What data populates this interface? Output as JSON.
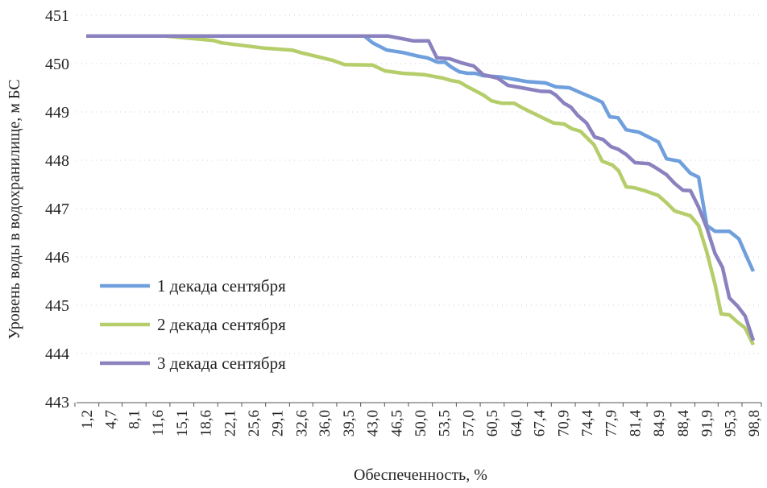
{
  "chart_data": {
    "type": "line",
    "title": "",
    "xlabel": "Обеспеченность, %",
    "ylabel": "Уровень воды в водохранилище, м БС",
    "ylim": [
      443,
      451
    ],
    "xlim": [
      1.2,
      98.8
    ],
    "yticks": [
      "443",
      "444",
      "445",
      "446",
      "447",
      "448",
      "449",
      "450",
      "451"
    ],
    "xticks": [
      "1,2",
      "4,7",
      "8,1",
      "11,6",
      "15,1",
      "18,6",
      "22,1",
      "25,6",
      "29,1",
      "32,6",
      "36,0",
      "39,5",
      "43,0",
      "46,5",
      "50,0",
      "53,5",
      "57,0",
      "60,5",
      "64,0",
      "67,4",
      "70,9",
      "74,4",
      "77,9",
      "81,4",
      "84,9",
      "88,4",
      "91,9",
      "95,3",
      "98,8"
    ],
    "grid": true,
    "legend_position": "left-bottom",
    "series": [
      {
        "name": "1 декада сентября",
        "color": "#6f9fdc",
        "points": [
          [
            1.2,
            450.57
          ],
          [
            41.9,
            450.57
          ],
          [
            43.1,
            450.43
          ],
          [
            45.2,
            450.28
          ],
          [
            47.5,
            450.23
          ],
          [
            49.9,
            450.15
          ],
          [
            51.1,
            450.12
          ],
          [
            52.6,
            450.03
          ],
          [
            53.7,
            450.03
          ],
          [
            54.6,
            449.93
          ],
          [
            55.8,
            449.83
          ],
          [
            57.0,
            449.8
          ],
          [
            58.1,
            449.8
          ],
          [
            59.3,
            449.75
          ],
          [
            62.0,
            449.72
          ],
          [
            65.6,
            449.63
          ],
          [
            68.4,
            449.6
          ],
          [
            69.9,
            449.52
          ],
          [
            71.9,
            449.5
          ],
          [
            73.5,
            449.4
          ],
          [
            75.5,
            449.28
          ],
          [
            76.7,
            449.2
          ],
          [
            77.8,
            448.9
          ],
          [
            79.0,
            448.88
          ],
          [
            80.2,
            448.63
          ],
          [
            82.1,
            448.58
          ],
          [
            84.9,
            448.38
          ],
          [
            86.1,
            448.03
          ],
          [
            88.0,
            447.98
          ],
          [
            89.6,
            447.73
          ],
          [
            90.8,
            447.65
          ],
          [
            92.0,
            446.65
          ],
          [
            93.2,
            446.53
          ],
          [
            95.3,
            446.53
          ],
          [
            96.7,
            446.37
          ],
          [
            97.9,
            445.98
          ],
          [
            98.8,
            445.7
          ]
        ]
      },
      {
        "name": "2 декада сентября",
        "color": "#b5cd6a",
        "points": [
          [
            1.2,
            450.57
          ],
          [
            12.8,
            450.57
          ],
          [
            19.8,
            450.48
          ],
          [
            21.0,
            450.43
          ],
          [
            27.3,
            450.32
          ],
          [
            31.3,
            450.28
          ],
          [
            32.8,
            450.22
          ],
          [
            37.2,
            450.07
          ],
          [
            39.0,
            449.98
          ],
          [
            43.1,
            449.97
          ],
          [
            44.9,
            449.85
          ],
          [
            47.5,
            449.8
          ],
          [
            50.7,
            449.77
          ],
          [
            53.4,
            449.7
          ],
          [
            54.6,
            449.65
          ],
          [
            55.8,
            449.62
          ],
          [
            57.0,
            449.52
          ],
          [
            59.3,
            449.35
          ],
          [
            60.5,
            449.23
          ],
          [
            62.0,
            449.18
          ],
          [
            63.8,
            449.18
          ],
          [
            65.2,
            449.07
          ],
          [
            68.4,
            448.85
          ],
          [
            69.6,
            448.77
          ],
          [
            71.1,
            448.75
          ],
          [
            72.3,
            448.65
          ],
          [
            73.5,
            448.6
          ],
          [
            75.5,
            448.32
          ],
          [
            76.7,
            447.98
          ],
          [
            78.2,
            447.9
          ],
          [
            79.1,
            447.78
          ],
          [
            80.2,
            447.45
          ],
          [
            81.4,
            447.43
          ],
          [
            82.9,
            447.37
          ],
          [
            84.9,
            447.27
          ],
          [
            86.1,
            447.12
          ],
          [
            87.3,
            446.95
          ],
          [
            89.6,
            446.85
          ],
          [
            90.8,
            446.65
          ],
          [
            92.0,
            446.1
          ],
          [
            93.2,
            445.43
          ],
          [
            94.1,
            444.82
          ],
          [
            95.3,
            444.8
          ],
          [
            96.5,
            444.65
          ],
          [
            97.6,
            444.53
          ],
          [
            98.8,
            444.18
          ]
        ]
      },
      {
        "name": "3 декада сентября",
        "color": "#8a82bf",
        "points": [
          [
            1.2,
            450.57
          ],
          [
            45.4,
            450.57
          ],
          [
            46.9,
            450.53
          ],
          [
            49.1,
            450.47
          ],
          [
            51.3,
            450.47
          ],
          [
            52.5,
            450.12
          ],
          [
            54.4,
            450.1
          ],
          [
            56.0,
            450.02
          ],
          [
            57.9,
            449.95
          ],
          [
            59.3,
            449.77
          ],
          [
            61.4,
            449.7
          ],
          [
            62.9,
            449.55
          ],
          [
            64.9,
            449.5
          ],
          [
            67.6,
            449.43
          ],
          [
            69.1,
            449.42
          ],
          [
            69.9,
            449.35
          ],
          [
            71.1,
            449.18
          ],
          [
            72.1,
            449.1
          ],
          [
            73.1,
            448.93
          ],
          [
            74.4,
            448.77
          ],
          [
            75.6,
            448.48
          ],
          [
            76.8,
            448.43
          ],
          [
            78.0,
            448.28
          ],
          [
            79.0,
            448.23
          ],
          [
            80.2,
            448.12
          ],
          [
            81.5,
            447.95
          ],
          [
            83.5,
            447.93
          ],
          [
            84.7,
            447.83
          ],
          [
            86.1,
            447.7
          ],
          [
            87.3,
            447.52
          ],
          [
            88.5,
            447.38
          ],
          [
            89.6,
            447.37
          ],
          [
            90.8,
            447.03
          ],
          [
            92.0,
            446.6
          ],
          [
            93.2,
            446.07
          ],
          [
            94.3,
            445.78
          ],
          [
            95.3,
            445.15
          ],
          [
            96.5,
            444.98
          ],
          [
            97.6,
            444.78
          ],
          [
            98.8,
            444.27
          ]
        ]
      }
    ]
  }
}
